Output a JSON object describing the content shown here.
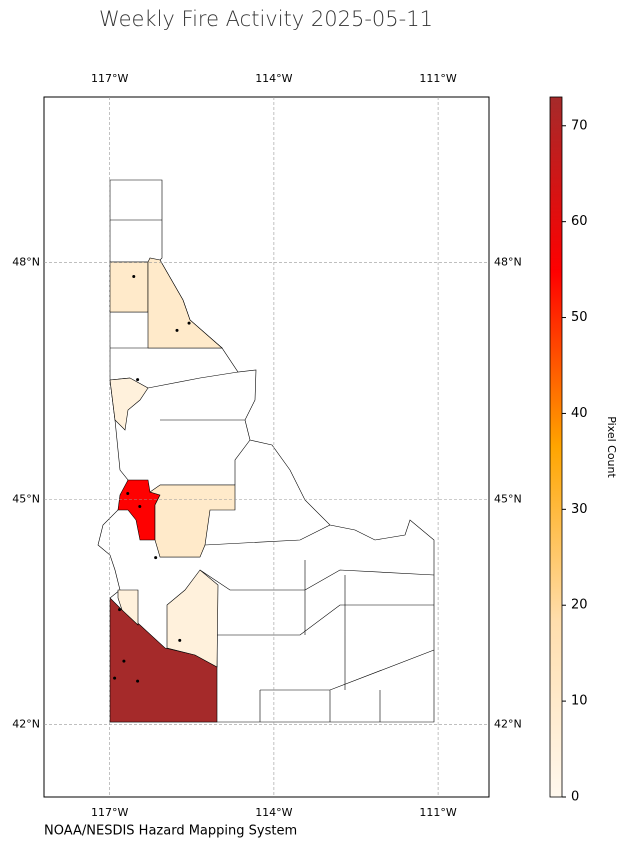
{
  "chart_data": {
    "type": "choropleth",
    "title": "Weekly Fire Activity 2025-05-11",
    "source": "NOAA/NESDIS Hazard Mapping System",
    "colorbar_label": "Pixel Count",
    "xlim": [
      -118.2,
      -110.07
    ],
    "ylim": [
      41,
      50
    ],
    "xticks": [
      {
        "value": -117,
        "label": "117°W"
      },
      {
        "value": -114,
        "label": "114°W"
      },
      {
        "value": -111,
        "label": "111°W"
      }
    ],
    "yticks": [
      {
        "value": 48,
        "label": "48°N"
      },
      {
        "value": 45,
        "label": "45°N"
      },
      {
        "value": 42,
        "label": "42°N"
      }
    ],
    "grid": true,
    "clim": [
      0,
      73
    ],
    "cticks": [
      0,
      10,
      20,
      30,
      40,
      50,
      60,
      70
    ],
    "colorscale": [
      "#fff8ee",
      "#ffdead",
      "#ffa500",
      "#ff0000",
      "#a52a2a"
    ],
    "county_counts": [
      73,
      55,
      10,
      10,
      10,
      5,
      5,
      5
    ],
    "fire_points": {
      "lon": [
        -116.56,
        -115.77,
        -115.55,
        -116.49,
        -116.45,
        -116.67,
        -116.91,
        -116.74,
        -116.49,
        -115.72,
        -116.16,
        -116.82
      ],
      "lat": [
        47.83,
        47.16,
        47.25,
        46.54,
        44.91,
        45.08,
        42.63,
        42.86,
        42.59,
        43.14,
        44.24,
        43.55
      ]
    }
  }
}
